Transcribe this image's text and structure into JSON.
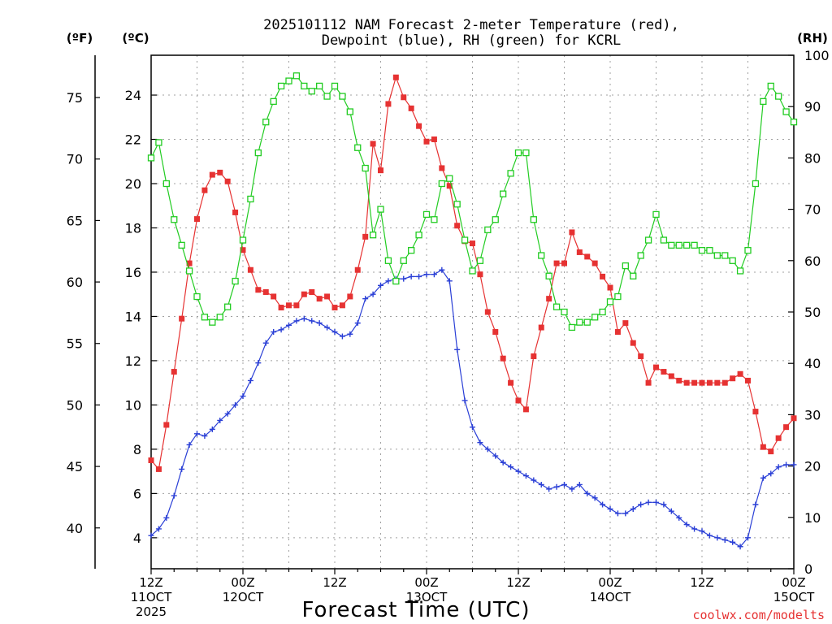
{
  "title_line1": "2025101112 NAM Forecast 2-meter Temperature (red),",
  "title_line2": "Dewpoint (blue), RH (green) for KCRL",
  "unit_f": "(ºF)",
  "unit_c": "(ºC)",
  "unit_rh": "(RH)",
  "xlabel": "Forecast Time (UTC)",
  "credit": "coolwx.com/modelts",
  "colors": {
    "temp": "#e63232",
    "dewpoint": "#2a3fd6",
    "rh": "#22cc22",
    "grid": "#a0a0a0"
  },
  "chart_data": {
    "type": "line",
    "x_unit": "forecast hour from 2025-10-11 12Z",
    "xlim": [
      0,
      84
    ],
    "ylim_c": [
      2.6,
      25.8
    ],
    "ylim_rh": [
      0,
      100
    ],
    "f_axis_ticks": [
      40,
      45,
      50,
      55,
      60,
      65,
      70,
      75
    ],
    "c_axis_ticks": [
      4,
      6,
      8,
      10,
      12,
      14,
      16,
      18,
      20,
      22,
      24
    ],
    "rh_axis_ticks": [
      0,
      10,
      20,
      30,
      40,
      50,
      60,
      70,
      80,
      90,
      100
    ],
    "x_ticks": [
      {
        "x": 0,
        "lines": [
          "12Z",
          "11OCT",
          "2025"
        ]
      },
      {
        "x": 12,
        "lines": [
          "00Z",
          "12OCT"
        ]
      },
      {
        "x": 24,
        "lines": [
          "12Z"
        ]
      },
      {
        "x": 36,
        "lines": [
          "00Z",
          "13OCT"
        ]
      },
      {
        "x": 48,
        "lines": [
          "12Z"
        ]
      },
      {
        "x": 60,
        "lines": [
          "00Z",
          "14OCT"
        ]
      },
      {
        "x": 72,
        "lines": [
          "12Z"
        ]
      },
      {
        "x": 84,
        "lines": [
          "00Z",
          "15OCT"
        ]
      }
    ],
    "grid": true,
    "series": [
      {
        "name": "Temperature",
        "unit": "C",
        "x": [
          0,
          1,
          2,
          3,
          4,
          5,
          6,
          7,
          8,
          9,
          10,
          11,
          12,
          13,
          14,
          15,
          16,
          17,
          18,
          19,
          20,
          21,
          22,
          23,
          24,
          25,
          26,
          27,
          28,
          29,
          30,
          31,
          32,
          33,
          34,
          35,
          36,
          37,
          38,
          39,
          40,
          41,
          42,
          43,
          44,
          45,
          46,
          47,
          48,
          49,
          50,
          51,
          52,
          53,
          54,
          55,
          56,
          57,
          58,
          59,
          60,
          61,
          62,
          63,
          64,
          65,
          66,
          67,
          68,
          69,
          70,
          71,
          72,
          73,
          74,
          75,
          76,
          77,
          78,
          79,
          80,
          81,
          82,
          83,
          84
        ],
        "values": [
          7.5,
          7.1,
          9.1,
          11.5,
          13.9,
          16.4,
          18.4,
          19.7,
          20.4,
          20.5,
          20.1,
          18.7,
          17.0,
          16.1,
          15.2,
          15.1,
          14.9,
          14.4,
          14.5,
          14.5,
          15.0,
          15.1,
          14.8,
          14.9,
          14.4,
          14.5,
          14.9,
          16.1,
          17.6,
          21.8,
          20.6,
          23.6,
          24.8,
          23.9,
          23.4,
          22.6,
          21.9,
          22.0,
          20.7,
          19.9,
          18.1,
          17.4,
          17.3,
          15.9,
          14.2,
          13.3,
          12.1,
          11.0,
          10.2,
          9.8,
          12.2,
          13.5,
          14.8,
          16.4,
          16.4,
          17.8,
          16.9,
          16.7,
          16.4,
          15.8,
          15.3,
          13.3,
          13.7,
          12.8,
          12.2,
          11.0,
          11.7,
          11.5,
          11.3,
          11.1,
          11.0,
          11.0,
          11.0,
          11.0,
          11.0,
          11.0,
          11.2,
          11.4,
          11.1,
          9.7,
          8.1,
          7.9,
          8.5,
          9.0,
          9.4
        ]
      },
      {
        "name": "Dewpoint",
        "unit": "C",
        "x": [
          0,
          1,
          2,
          3,
          4,
          5,
          6,
          7,
          8,
          9,
          10,
          11,
          12,
          13,
          14,
          15,
          16,
          17,
          18,
          19,
          20,
          21,
          22,
          23,
          24,
          25,
          26,
          27,
          28,
          29,
          30,
          31,
          32,
          33,
          34,
          35,
          36,
          37,
          38,
          39,
          40,
          41,
          42,
          43,
          44,
          45,
          46,
          47,
          48,
          49,
          50,
          51,
          52,
          53,
          54,
          55,
          56,
          57,
          58,
          59,
          60,
          61,
          62,
          63,
          64,
          65,
          66,
          67,
          68,
          69,
          70,
          71,
          72,
          73,
          74,
          75,
          76,
          77,
          78,
          79,
          80,
          81,
          82,
          83,
          84
        ],
        "values": [
          4.1,
          4.4,
          4.9,
          5.9,
          7.1,
          8.2,
          8.7,
          8.6,
          8.9,
          9.3,
          9.6,
          10.0,
          10.4,
          11.1,
          11.9,
          12.8,
          13.3,
          13.4,
          13.6,
          13.8,
          13.9,
          13.8,
          13.7,
          13.5,
          13.3,
          13.1,
          13.2,
          13.7,
          14.8,
          15.0,
          15.4,
          15.6,
          15.7,
          15.7,
          15.8,
          15.8,
          15.9,
          15.9,
          16.1,
          15.6,
          12.5,
          10.2,
          9.0,
          8.3,
          8.0,
          7.7,
          7.4,
          7.2,
          7.0,
          6.8,
          6.6,
          6.4,
          6.2,
          6.3,
          6.4,
          6.2,
          6.4,
          6.0,
          5.8,
          5.5,
          5.3,
          5.1,
          5.1,
          5.3,
          5.5,
          5.6,
          5.6,
          5.5,
          5.2,
          4.9,
          4.6,
          4.4,
          4.3,
          4.1,
          4.0,
          3.9,
          3.8,
          3.6,
          4.0,
          5.5,
          6.7,
          6.9,
          7.2,
          7.3,
          7.3
        ]
      },
      {
        "name": "RH",
        "unit": "%",
        "x": [
          0,
          1,
          2,
          3,
          4,
          5,
          6,
          7,
          8,
          9,
          10,
          11,
          12,
          13,
          14,
          15,
          16,
          17,
          18,
          19,
          20,
          21,
          22,
          23,
          24,
          25,
          26,
          27,
          28,
          29,
          30,
          31,
          32,
          33,
          34,
          35,
          36,
          37,
          38,
          39,
          40,
          41,
          42,
          43,
          44,
          45,
          46,
          47,
          48,
          49,
          50,
          51,
          52,
          53,
          54,
          55,
          56,
          57,
          58,
          59,
          60,
          61,
          62,
          63,
          64,
          65,
          66,
          67,
          68,
          69,
          70,
          71,
          72,
          73,
          74,
          75,
          76,
          77,
          78,
          79,
          80,
          81,
          82,
          83,
          84
        ],
        "values": [
          80,
          83,
          75,
          68,
          63,
          58,
          53,
          49,
          48,
          49,
          51,
          56,
          64,
          72,
          81,
          87,
          91,
          94,
          95,
          96,
          94,
          93,
          94,
          92,
          94,
          92,
          89,
          82,
          78,
          65,
          70,
          60,
          56,
          60,
          62,
          65,
          69,
          68,
          75,
          76,
          71,
          64,
          58,
          60,
          66,
          68,
          73,
          77,
          81,
          81,
          68,
          61,
          57,
          51,
          50,
          47,
          48,
          48,
          49,
          50,
          52,
          53,
          59,
          57,
          61,
          64,
          69,
          64,
          63,
          63,
          63,
          63,
          62,
          62,
          61,
          61,
          60,
          58,
          62,
          75,
          91,
          94,
          92,
          89,
          87
        ]
      }
    ]
  }
}
